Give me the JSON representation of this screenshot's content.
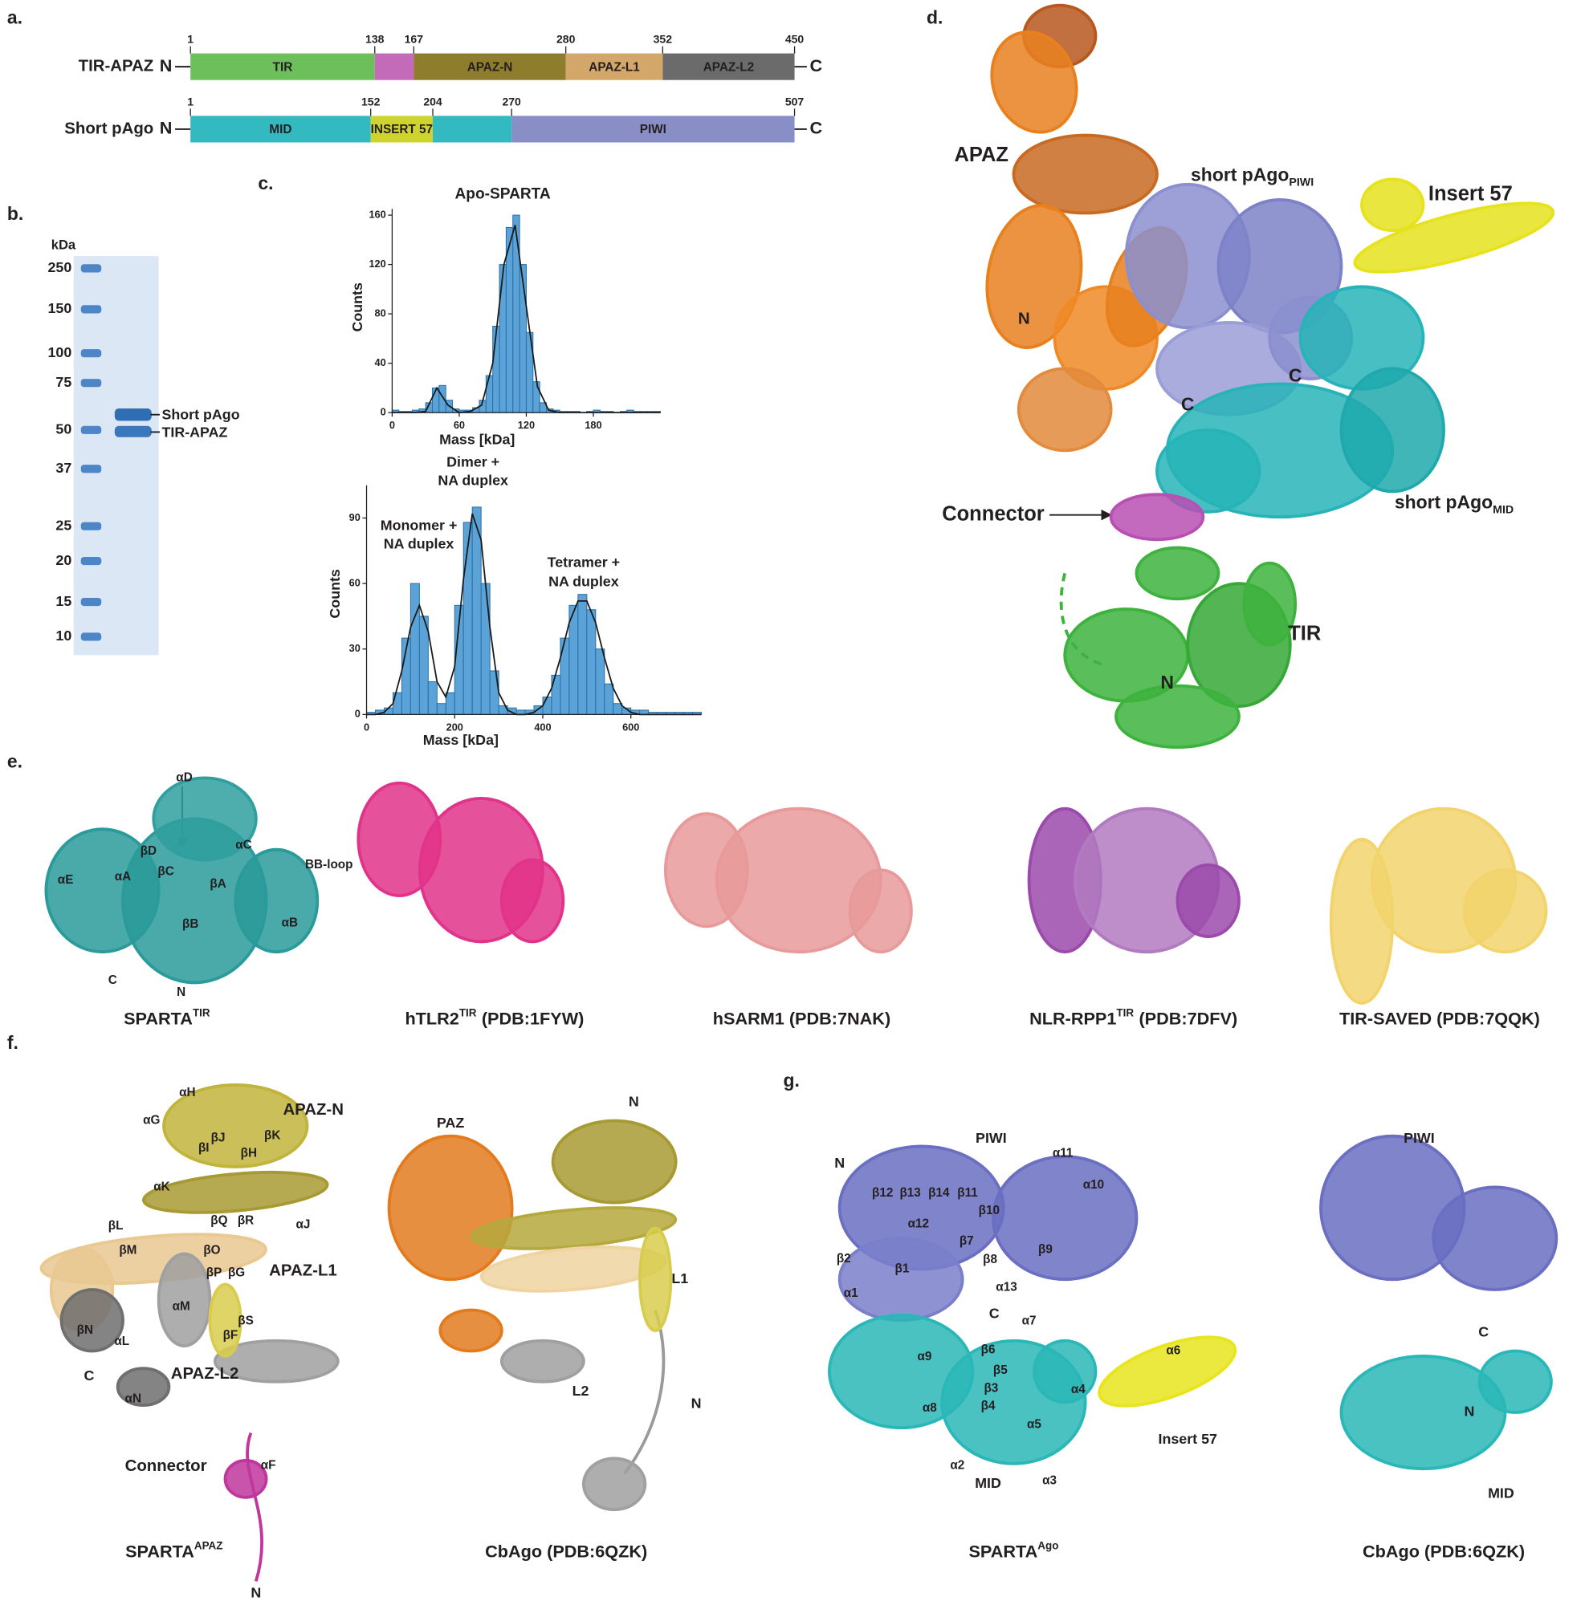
{
  "figure": {
    "panel_a": {
      "label": "a.",
      "rows": [
        {
          "name": "TIR-APAZ",
          "n": "N",
          "c": "C",
          "boundaries": [
            1,
            138,
            167,
            280,
            352,
            450
          ],
          "segments": [
            {
              "name": "TIR",
              "color": "#6cbf5a"
            },
            {
              "name": null,
              "color": "#c36ab8"
            },
            {
              "name": "APAZ-N",
              "color": "#8d7d2c"
            },
            {
              "name": "APAZ-L1",
              "color": "#d3a66a"
            },
            {
              "name": "APAZ-L2",
              "color": "#6b6b6b"
            }
          ]
        },
        {
          "name": "Short pAgo",
          "n": "N",
          "c": "C",
          "boundaries": [
            1,
            152,
            204,
            270,
            507
          ],
          "segments": [
            {
              "name": "MID",
              "color": "#33b9c0"
            },
            {
              "name": "INSERT 57",
              "color": "#cfd32e"
            },
            {
              "name": null,
              "color": "#33b9c0"
            },
            {
              "name": "PIWI",
              "color": "#8a8ec6"
            }
          ]
        }
      ]
    },
    "panel_b": {
      "label": "b.",
      "unit": "kDa",
      "ladder": [
        250,
        150,
        100,
        75,
        50,
        37,
        25,
        20,
        15,
        10
      ],
      "bands": [
        "Short pAgo",
        "TIR-APAZ"
      ]
    },
    "panel_c": {
      "label": "c."
    },
    "panel_d": {
      "label": "d.",
      "labels": [
        "APAZ",
        {
          "text": "short pAgo",
          "sub": "PIWI"
        },
        "Insert 57",
        "N",
        "C",
        "C",
        "Connector",
        {
          "text": "short pAgo",
          "sub": "MID"
        },
        "TIR",
        "N"
      ]
    },
    "panel_e": {
      "label": "e.",
      "sparta_labels": [
        "αD",
        "αC",
        "βD",
        "BB-loop",
        "βC",
        "αA",
        "αE",
        "βA",
        "βB",
        "αB",
        "C",
        "N"
      ],
      "captions": [
        {
          "text": "SPARTA",
          "sup": "TIR"
        },
        {
          "text": "hTLR2",
          "sup": "TIR",
          "rest": "(PDB:1FYW)"
        },
        {
          "text": "hSARM1 (PDB:7NAK)"
        },
        {
          "text": "NLR-RPP1",
          "sup": "TIR",
          "rest": "(PDB:7DFV)"
        },
        {
          "text": "TIR-SAVED (PDB:7QQK)"
        }
      ]
    },
    "panel_f": {
      "label": "f.",
      "apaz_labels": [
        "αH",
        "αG",
        "APAZ-N",
        "βJ",
        "βI",
        "βH",
        "βK",
        "αK",
        "βL",
        "βQ",
        "βR",
        "αJ",
        "βM",
        "βO",
        "βP",
        "βG",
        "APAZ-L1",
        "αM",
        "βN",
        "αL",
        "βF",
        "βS",
        "APAZ-L2",
        "C",
        "αN",
        "Connector",
        "αF",
        "N"
      ],
      "cbago_labels": [
        "PAZ",
        "N",
        "L1",
        "L2",
        "N"
      ],
      "captions": [
        {
          "text": "SPARTA",
          "sup": "APAZ"
        },
        {
          "text": "CbAgo (PDB:6QZK)"
        }
      ]
    },
    "panel_g": {
      "label": "g.",
      "sparta_labels": [
        "PIWI",
        "α11",
        "N",
        "α10",
        "β12",
        "β13",
        "β14",
        "β11",
        "β10",
        "β7",
        "α12",
        "β8",
        "β9",
        "β2",
        "β1",
        "α13",
        "α1",
        "C",
        "α7",
        "α6",
        "β6",
        "α9",
        "β5",
        "β3",
        "α4",
        "α8",
        "β4",
        "α5",
        "Insert 57",
        "α2",
        "α3",
        "MID"
      ],
      "cbago_labels": [
        "PIWI",
        "C",
        "N",
        "MID"
      ],
      "captions": [
        {
          "text": "SPARTA",
          "sup": "Ago"
        },
        {
          "text": "CbAgo (PDB:6QZK)"
        }
      ]
    }
  },
  "chart_data": [
    {
      "type": "histogram",
      "title": "Apo-SPARTA",
      "x_label": "Mass [kDa]",
      "y_label": "Counts",
      "bins": [
        0,
        6,
        12,
        18,
        24,
        30,
        36,
        42,
        48,
        54,
        60,
        66,
        72,
        78,
        84,
        90,
        96,
        102,
        108,
        114,
        120,
        126,
        132,
        138,
        144,
        150,
        156,
        162,
        168,
        174,
        180,
        186,
        192,
        198,
        204,
        210,
        216,
        222,
        228,
        234,
        240
      ],
      "values": [
        2,
        1,
        1,
        2,
        3,
        8,
        20,
        22,
        10,
        3,
        2,
        2,
        4,
        10,
        30,
        70,
        120,
        150,
        160,
        120,
        65,
        25,
        8,
        3,
        2,
        1,
        1,
        1,
        0,
        1,
        2,
        1,
        1,
        0,
        1,
        2,
        1,
        1,
        1,
        1
      ],
      "color": "#5ba3d6",
      "fit": {
        "x": [
          0,
          10,
          20,
          30,
          40,
          50,
          60,
          70,
          80,
          90,
          100,
          110,
          120,
          130,
          140,
          150,
          160,
          170,
          180,
          190,
          200,
          210,
          220,
          230,
          240
        ],
        "values": [
          0,
          0,
          0,
          1,
          20,
          6,
          0,
          1,
          6,
          40,
          120,
          152,
          86,
          21,
          2,
          0,
          0,
          0,
          0,
          0,
          0,
          0,
          0,
          0,
          0
        ],
        "color": "#1a1a1a"
      },
      "xlim": [
        0,
        240
      ],
      "xticks": [
        0,
        60,
        120,
        180
      ],
      "ylim": [
        0,
        165
      ],
      "yticks": [
        0,
        40,
        80,
        120,
        160
      ]
    },
    {
      "type": "histogram",
      "x_label": "Mass [kDa]",
      "y_label": "Counts",
      "bins": [
        0,
        20,
        40,
        60,
        80,
        100,
        120,
        140,
        160,
        180,
        200,
        220,
        240,
        260,
        280,
        300,
        320,
        340,
        360,
        380,
        400,
        420,
        440,
        460,
        480,
        500,
        520,
        540,
        560,
        580,
        600,
        620,
        640,
        660,
        680,
        700,
        720,
        740,
        760
      ],
      "values": [
        1,
        2,
        3,
        10,
        35,
        60,
        45,
        15,
        5,
        10,
        50,
        88,
        95,
        60,
        20,
        4,
        3,
        2,
        2,
        4,
        8,
        18,
        35,
        50,
        55,
        48,
        30,
        14,
        5,
        3,
        2,
        2,
        1,
        1,
        1,
        1,
        1,
        1
      ],
      "color": "#5ba3d6",
      "fit": {
        "x": [
          0,
          20,
          40,
          60,
          80,
          100,
          120,
          140,
          160,
          180,
          200,
          220,
          240,
          260,
          280,
          300,
          320,
          340,
          360,
          380,
          400,
          420,
          440,
          460,
          480,
          500,
          520,
          540,
          560,
          580,
          600,
          620,
          640,
          660,
          680,
          700,
          720,
          740,
          760
        ],
        "values": [
          0,
          0,
          1,
          5,
          20,
          40,
          50,
          38,
          15,
          8,
          22,
          62,
          92,
          80,
          40,
          10,
          2,
          0,
          0,
          1,
          4,
          12,
          26,
          42,
          52,
          52,
          42,
          26,
          12,
          4,
          1,
          0,
          0,
          0,
          0,
          0,
          0,
          0,
          0
        ],
        "color": "#1a1a1a"
      },
      "annotations": [
        [
          "Monomer +",
          "NA duplex"
        ],
        [
          "Dimer +",
          "NA duplex"
        ],
        [
          "Tetramer +",
          "NA duplex"
        ]
      ],
      "xlim": [
        0,
        760
      ],
      "xticks": [
        0,
        200,
        400,
        600
      ],
      "ylim": [
        0,
        105
      ],
      "yticks": [
        0,
        30,
        60,
        90
      ]
    }
  ]
}
